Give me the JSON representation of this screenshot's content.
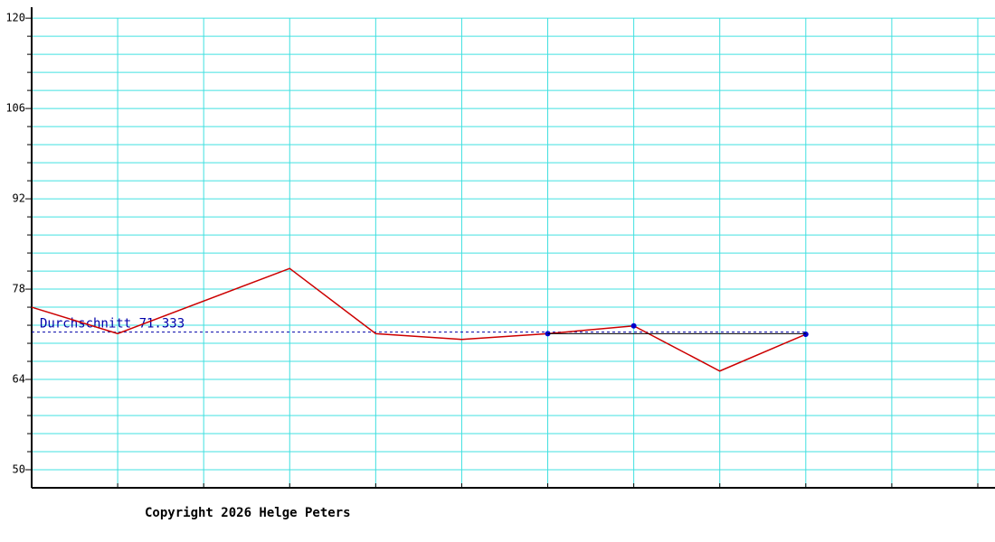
{
  "chart_data": {
    "type": "line",
    "x": [
      0,
      1,
      3,
      4,
      5,
      6,
      7,
      8,
      9
    ],
    "series": [
      {
        "color": "#cc0000",
        "values": [
          75.2,
          71.1,
          81.2,
          71.1,
          70.2,
          71.1,
          72.3,
          65.3,
          71.0
        ],
        "marker_x": [
          6,
          7,
          9
        ],
        "marker_color": "#0000cc"
      },
      {
        "color": "#000000",
        "x": [
          6,
          9
        ],
        "values": [
          71.1,
          71.1
        ]
      }
    ],
    "average": {
      "label": "Durchschnitt 71.333",
      "value": 71.333,
      "color": "#0000aa"
    },
    "xlim": [
      0,
      11.2
    ],
    "xticks": [
      0,
      1,
      2,
      3,
      4,
      5,
      6,
      7,
      8,
      9,
      10,
      11
    ],
    "ylim": [
      47.2,
      121.7
    ],
    "yticks": [
      50,
      64,
      78,
      92,
      106,
      120
    ],
    "minor_yticks": [
      52.8,
      55.6,
      58.4,
      61.2,
      66.8,
      69.6,
      72.4,
      75.2,
      80.8,
      83.6,
      86.4,
      89.2,
      94.8,
      97.6,
      100.4,
      103.2,
      108.8,
      111.6,
      114.4,
      117.2
    ],
    "grid": true,
    "grid_color": "#40e0e0",
    "copyright": "Copyright 2026 Helge Peters"
  }
}
